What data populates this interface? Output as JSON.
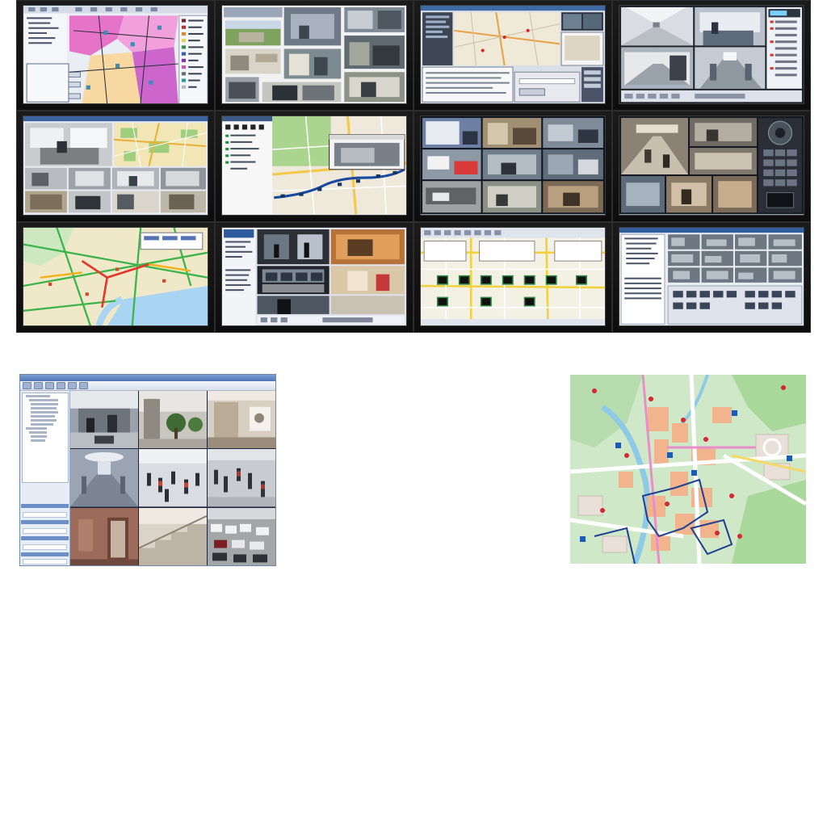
{
  "video_wall": {
    "columns": 4,
    "rows": 3,
    "screens": [
      {
        "id": "screen-r1c1",
        "kind": "gis-zone-map"
      },
      {
        "id": "screen-r1c2",
        "kind": "camera-collage"
      },
      {
        "id": "screen-r1c3",
        "kind": "street-map-dispatch"
      },
      {
        "id": "screen-r1c4",
        "kind": "corridor-cameras"
      },
      {
        "id": "screen-r2c1",
        "kind": "office-cameras-with-map"
      },
      {
        "id": "screen-r2c2",
        "kind": "route-map"
      },
      {
        "id": "screen-r2c3",
        "kind": "camera-grid"
      },
      {
        "id": "screen-r2c4",
        "kind": "mall-cameras-ptz"
      },
      {
        "id": "screen-r3c1",
        "kind": "traffic-map"
      },
      {
        "id": "screen-r3c2",
        "kind": "control-room-cameras"
      },
      {
        "id": "screen-r3c3",
        "kind": "map-with-camera-icons"
      },
      {
        "id": "screen-r3c4",
        "kind": "camera-manager-grid"
      }
    ]
  },
  "camera_viewer": {
    "title_bar_color": "#5a7fbd",
    "cameras": [
      {
        "id": "cam-1",
        "scene": "lobby-seating"
      },
      {
        "id": "cam-2",
        "scene": "atrium-plants"
      },
      {
        "id": "cam-3",
        "scene": "reception-corridor"
      },
      {
        "id": "cam-4",
        "scene": "hallway"
      },
      {
        "id": "cam-5",
        "scene": "crowd-plaza"
      },
      {
        "id": "cam-6",
        "scene": "crowd-walkway"
      },
      {
        "id": "cam-7",
        "scene": "elevator-door"
      },
      {
        "id": "cam-8",
        "scene": "stairwell"
      },
      {
        "id": "cam-9",
        "scene": "parking-lot"
      }
    ]
  },
  "campus_map": {
    "land_color": "#cfe8c8",
    "park_color": "#a8d89a",
    "building_color": "#f2b48c",
    "road_color": "#ffffff",
    "river_color": "#8ec9e6",
    "route_color": "#1f3f8f",
    "marker_colors": [
      "#d9262c",
      "#1d5bb5"
    ]
  },
  "colors": {
    "wall_bezel": "#0f0f0f",
    "page_background": "#ffffff"
  }
}
